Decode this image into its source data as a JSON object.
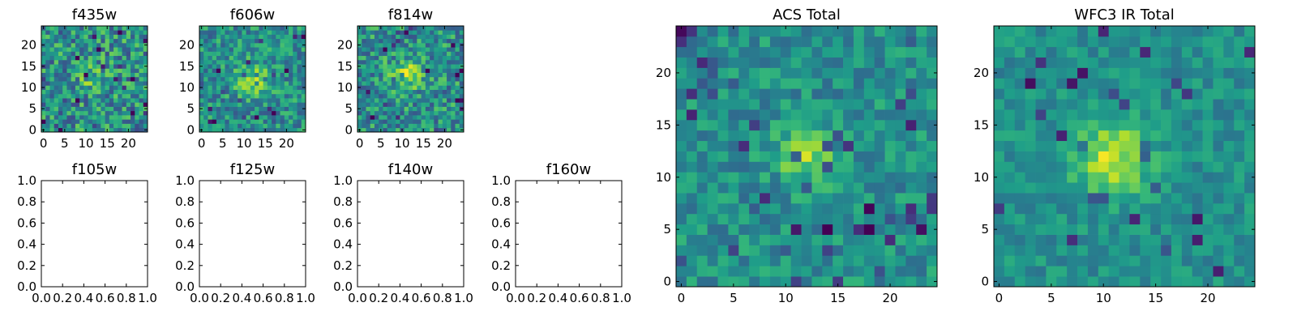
{
  "colormap": "viridis",
  "colors": {
    "viridis_low": "#440154",
    "viridis_mid": "#21918c",
    "viridis_high": "#fde725"
  },
  "chart_data": [
    {
      "type": "heatmap",
      "title": "f435w",
      "image_size": 25,
      "xlim": [
        -0.5,
        24.5
      ],
      "ylim": [
        -0.5,
        24.5
      ],
      "xticks": [
        0,
        5,
        10,
        15,
        20
      ],
      "yticks": [
        0,
        5,
        10,
        15,
        20
      ],
      "noise": 0.28,
      "peak_center": [
        12,
        12
      ],
      "peak_sigma": 2.4,
      "peak_amplitude": 0.18
    },
    {
      "type": "heatmap",
      "title": "f606w",
      "image_size": 25,
      "xlim": [
        -0.5,
        24.5
      ],
      "ylim": [
        -0.5,
        24.5
      ],
      "xticks": [
        0,
        5,
        10,
        15,
        20
      ],
      "yticks": [
        0,
        5,
        10,
        15,
        20
      ],
      "noise": 0.22,
      "peak_center": [
        12,
        12
      ],
      "peak_sigma": 2.6,
      "peak_amplitude": 0.3
    },
    {
      "type": "heatmap",
      "title": "f814w",
      "image_size": 25,
      "xlim": [
        -0.5,
        24.5
      ],
      "ylim": [
        -0.5,
        24.5
      ],
      "xticks": [
        0,
        5,
        10,
        15,
        20
      ],
      "yticks": [
        0,
        5,
        10,
        15,
        20
      ],
      "noise": 0.25,
      "peak_center": [
        11,
        13
      ],
      "peak_sigma": 2.6,
      "peak_amplitude": 0.3
    },
    {
      "type": "empty",
      "title": "f105w",
      "xlim": [
        0,
        1
      ],
      "ylim": [
        0,
        1
      ],
      "xticks": [
        0,
        0.2,
        0.4,
        0.6,
        0.8,
        1
      ],
      "yticks": [
        0,
        0.2,
        0.4,
        0.6,
        0.8,
        1
      ],
      "xtick_labels": [
        "0.0",
        "0.2",
        "0.4",
        "0.6",
        "0.8",
        "1.0"
      ],
      "ytick_labels": [
        "0.0",
        "0.2",
        "0.4",
        "0.6",
        "0.8",
        "1.0"
      ]
    },
    {
      "type": "empty",
      "title": "f125w",
      "xlim": [
        0,
        1
      ],
      "ylim": [
        0,
        1
      ],
      "xticks": [
        0,
        0.2,
        0.4,
        0.6,
        0.8,
        1
      ],
      "yticks": [
        0,
        0.2,
        0.4,
        0.6,
        0.8,
        1
      ],
      "xtick_labels": [
        "0.0",
        "0.2",
        "0.4",
        "0.6",
        "0.8",
        "1.0"
      ],
      "ytick_labels": [
        "0.0",
        "0.2",
        "0.4",
        "0.6",
        "0.8",
        "1.0"
      ]
    },
    {
      "type": "empty",
      "title": "f140w",
      "xlim": [
        0,
        1
      ],
      "ylim": [
        0,
        1
      ],
      "xticks": [
        0,
        0.2,
        0.4,
        0.6,
        0.8,
        1
      ],
      "yticks": [
        0,
        0.2,
        0.4,
        0.6,
        0.8,
        1
      ],
      "xtick_labels": [
        "0.0",
        "0.2",
        "0.4",
        "0.6",
        "0.8",
        "1.0"
      ],
      "ytick_labels": [
        "0.0",
        "0.2",
        "0.4",
        "0.6",
        "0.8",
        "1.0"
      ]
    },
    {
      "type": "empty",
      "title": "f160w",
      "xlim": [
        0,
        1
      ],
      "ylim": [
        0,
        1
      ],
      "xticks": [
        0,
        0.2,
        0.4,
        0.6,
        0.8,
        1
      ],
      "yticks": [
        0,
        0.2,
        0.4,
        0.6,
        0.8,
        1
      ],
      "xtick_labels": [
        "0.0",
        "0.2",
        "0.4",
        "0.6",
        "0.8",
        "1.0"
      ],
      "ytick_labels": [
        "0.0",
        "0.2",
        "0.4",
        "0.6",
        "0.8",
        "1.0"
      ]
    },
    {
      "type": "heatmap",
      "title": "ACS Total",
      "image_size": 25,
      "xlim": [
        -0.5,
        24.5
      ],
      "ylim": [
        -0.5,
        24.5
      ],
      "xticks": [
        0,
        5,
        10,
        15,
        20
      ],
      "yticks": [
        0,
        5,
        10,
        15,
        20
      ],
      "noise": 0.16,
      "peak_center": [
        12,
        12
      ],
      "peak_sigma": 1.8,
      "peak_amplitude": 0.35
    },
    {
      "type": "heatmap",
      "title": "WFC3 IR Total",
      "image_size": 25,
      "xlim": [
        -0.5,
        24.5
      ],
      "ylim": [
        -0.5,
        24.5
      ],
      "xticks": [
        0,
        5,
        10,
        15,
        20
      ],
      "yticks": [
        0,
        5,
        10,
        15,
        20
      ],
      "noise": 0.12,
      "peak_center": [
        11,
        12
      ],
      "peak_sigma": 2.6,
      "peak_amplitude": 0.4
    }
  ]
}
